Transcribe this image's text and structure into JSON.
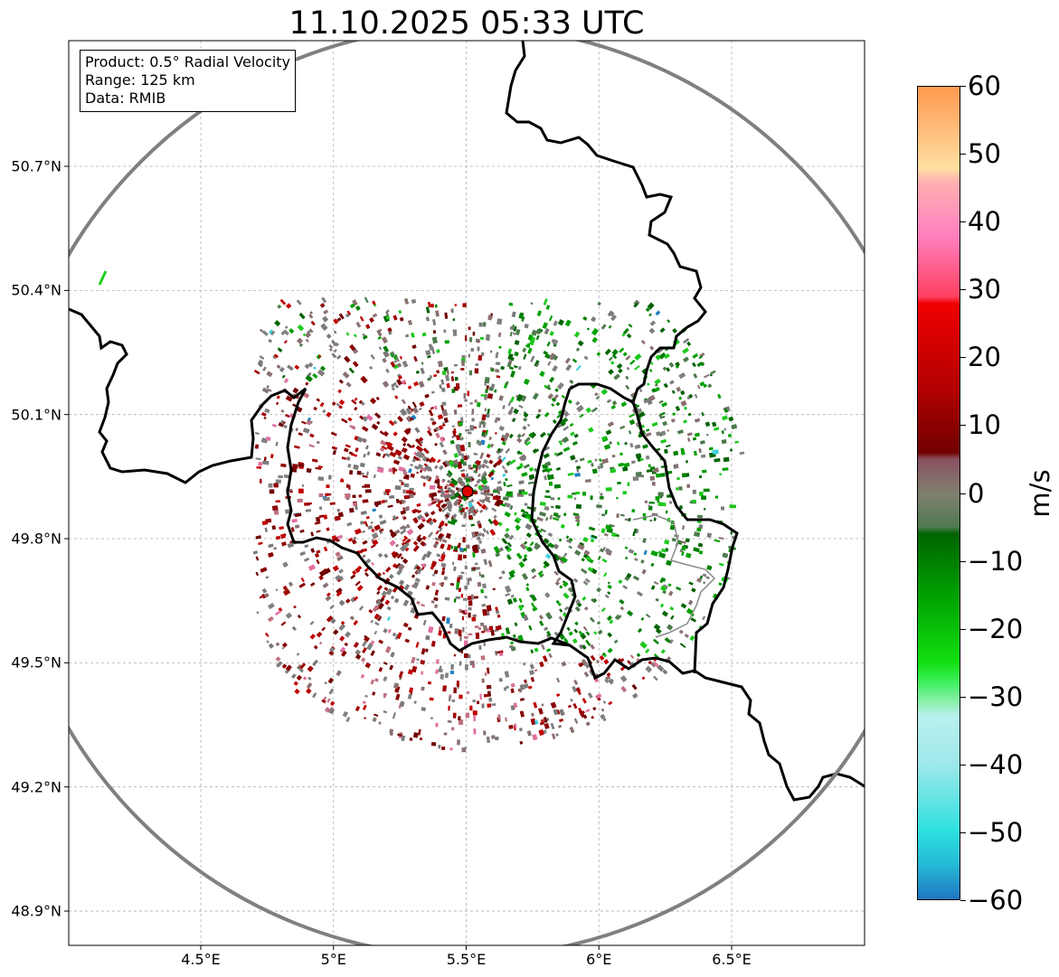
{
  "title": "11.10.2025 05:33 UTC",
  "info": {
    "product": "Product: 0.5° Radial Velocity",
    "range": "Range: 125 km",
    "data": "Data: RMIB"
  },
  "map": {
    "lon_range": [
      4.0,
      7.0
    ],
    "lat_range": [
      48.8,
      51.0
    ],
    "x_ticks": [
      {
        "value": 4.5,
        "label": "4.5°E"
      },
      {
        "value": 5.0,
        "label": "5°E"
      },
      {
        "value": 5.5,
        "label": "5.5°E"
      },
      {
        "value": 6.0,
        "label": "6°E"
      },
      {
        "value": 6.5,
        "label": "6.5°E"
      }
    ],
    "y_ticks": [
      {
        "value": 50.7,
        "label": "50.7°N"
      },
      {
        "value": 50.4,
        "label": "50.4°N"
      },
      {
        "value": 50.1,
        "label": "50.1°N"
      },
      {
        "value": 49.8,
        "label": "49.8°N"
      },
      {
        "value": 49.5,
        "label": "49.5°N"
      },
      {
        "value": 49.2,
        "label": "49.2°N"
      },
      {
        "value": 48.9,
        "label": "48.9°N"
      }
    ],
    "grid": true,
    "radar_site": {
      "lon": 5.505,
      "lat": 49.914,
      "marker_color": "#e00000"
    },
    "range_ring_km": 125,
    "range_ring_color": "#808080"
  },
  "colorbar": {
    "unit": "m/s",
    "min": -60,
    "max": 60,
    "ticks": [
      "60",
      "50",
      "40",
      "30",
      "20",
      "10",
      "0",
      "−10",
      "−20",
      "−30",
      "−40",
      "−50",
      "−60"
    ],
    "stops": [
      {
        "v": -60,
        "c": "#1f77c0"
      },
      {
        "v": -55,
        "c": "#25b8d6"
      },
      {
        "v": -50,
        "c": "#2ee0e0"
      },
      {
        "v": -40,
        "c": "#9fe8ea"
      },
      {
        "v": -33,
        "c": "#b8f0f0"
      },
      {
        "v": -31,
        "c": "#90f0b0"
      },
      {
        "v": -28,
        "c": "#40f060"
      },
      {
        "v": -25,
        "c": "#10e010"
      },
      {
        "v": -15,
        "c": "#00a000"
      },
      {
        "v": -6,
        "c": "#006400"
      },
      {
        "v": -5,
        "c": "#507a50"
      },
      {
        "v": 0,
        "c": "#808070"
      },
      {
        "v": 5,
        "c": "#8a5060"
      },
      {
        "v": 6,
        "c": "#700000"
      },
      {
        "v": 15,
        "c": "#b00000"
      },
      {
        "v": 28,
        "c": "#f00000"
      },
      {
        "v": 29,
        "c": "#ff4060"
      },
      {
        "v": 38,
        "c": "#ff80c0"
      },
      {
        "v": 46,
        "c": "#ffb0b0"
      },
      {
        "v": 48,
        "c": "#ffe0a0"
      },
      {
        "v": 53,
        "c": "#ffc080"
      },
      {
        "v": 60,
        "c": "#ff9a50"
      }
    ]
  }
}
